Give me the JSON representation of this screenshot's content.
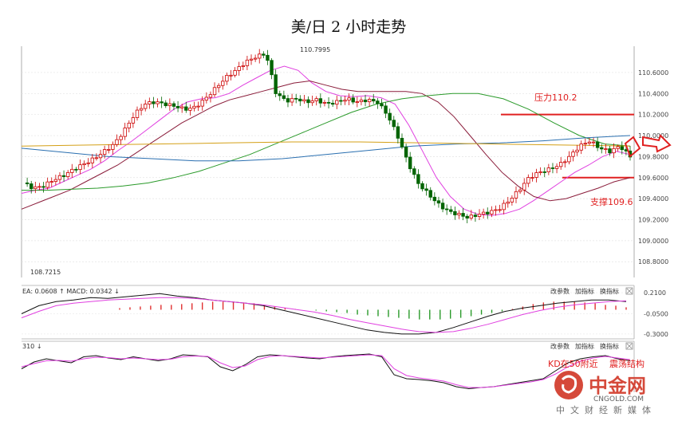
{
  "chart_data": [
    {
      "type": "candlestick",
      "title": "美/日 2 小时走势",
      "ylim": [
        108.65,
        110.85
      ],
      "y_ticks": [
        "110.6000",
        "110.4000",
        "110.2000",
        "110.0000",
        "109.8000",
        "109.6000",
        "109.4000",
        "109.2000",
        "109.0000",
        "108.8000"
      ],
      "y_tick_values": [
        110.6,
        110.4,
        110.2,
        110.0,
        109.8,
        109.6,
        109.4,
        109.2,
        109.0,
        108.8
      ],
      "high_label": "110.7995",
      "low_label": "108.7215",
      "close_path": [
        109.55,
        109.5,
        109.52,
        109.58,
        109.62,
        109.68,
        109.73,
        109.78,
        109.85,
        109.92,
        110.05,
        110.2,
        110.3,
        110.32,
        110.3,
        110.28,
        110.25,
        110.27,
        110.35,
        110.45,
        110.55,
        110.62,
        110.7,
        110.75,
        110.78,
        110.4,
        110.33,
        110.35,
        110.32,
        110.34,
        110.3,
        110.32,
        110.35,
        110.32,
        110.34,
        110.32,
        110.2,
        110.0,
        109.75,
        109.55,
        109.45,
        109.35,
        109.28,
        109.25,
        109.22,
        109.25,
        109.27,
        109.3,
        109.38,
        109.48,
        109.6,
        109.65,
        109.68,
        109.72,
        109.8,
        109.9,
        109.95,
        109.88,
        109.85,
        109.9,
        109.8
      ],
      "series": [
        {
          "name": "",
          "color": "#e040e0",
          "values": [
            109.45,
            109.48,
            109.5,
            109.56,
            109.62,
            109.68,
            109.76,
            109.86,
            109.95,
            110.05,
            110.15,
            110.25,
            110.32,
            110.35,
            110.36,
            110.4,
            110.48,
            110.55,
            110.62,
            110.66,
            110.62,
            110.5,
            110.42,
            110.38,
            110.37,
            110.38,
            110.36,
            110.3,
            110.1,
            109.85,
            109.6,
            109.42,
            109.3,
            109.25,
            109.24,
            109.26,
            109.3,
            109.38,
            109.47,
            109.56,
            109.65,
            109.72,
            109.8,
            109.85,
            109.82
          ]
        },
        {
          "name": "",
          "color": "#8a1c3a",
          "values": [
            109.3,
            109.36,
            109.42,
            109.48,
            109.56,
            109.64,
            109.72,
            109.82,
            109.92,
            110.02,
            110.12,
            110.2,
            110.28,
            110.34,
            110.38,
            110.42,
            110.46,
            110.5,
            110.52,
            110.48,
            110.44,
            110.42,
            110.42,
            110.42,
            110.42,
            110.4,
            110.32,
            110.18,
            110.0,
            109.82,
            109.65,
            109.52,
            109.42,
            109.38,
            109.4,
            109.45,
            109.5,
            109.56,
            109.6
          ]
        },
        {
          "name": "",
          "color": "#2a9a2a",
          "values": [
            109.48,
            109.48,
            109.49,
            109.5,
            109.52,
            109.55,
            109.6,
            109.66,
            109.74,
            109.82,
            109.92,
            110.02,
            110.12,
            110.22,
            110.3,
            110.35,
            110.38,
            110.4,
            110.4,
            110.35,
            110.25,
            110.12,
            110.0,
            109.92,
            109.9
          ]
        },
        {
          "name": "",
          "color": "#2a6fb0",
          "values": [
            109.88,
            109.84,
            109.8,
            109.78,
            109.76,
            109.76,
            109.78,
            109.82,
            109.86,
            109.9,
            109.92,
            109.93,
            109.95,
            109.98,
            110.0
          ]
        },
        {
          "name": "",
          "color": "#d4a017",
          "values": [
            109.9,
            109.91,
            109.92,
            109.93,
            109.94,
            109.94,
            109.93,
            109.92,
            109.91,
            109.9
          ]
        }
      ],
      "annotations": {
        "resistance_label": "压力110.2",
        "resistance_value": 110.2,
        "support_label": "支撑109.6",
        "support_value": 109.6
      }
    },
    {
      "type": "line",
      "header": "EA: 0.0608 ↑ MACD: 0.0342 ↓",
      "y_ticks": [
        "0.2100",
        "-0.0500",
        "-0.3000"
      ],
      "y_tick_values": [
        0.21,
        -0.05,
        -0.3
      ],
      "ylim": [
        -0.36,
        0.3
      ],
      "buttons": [
        "改参数",
        "加指标",
        "换指标"
      ],
      "histogram": [
        0.02,
        0.03,
        0.04,
        0.05,
        0.06,
        0.06,
        0.07,
        0.08,
        0.09,
        0.1,
        0.1,
        0.1,
        0.09,
        0.08,
        0.06,
        0.04,
        0.02,
        0.01,
        0.0,
        -0.01,
        -0.02,
        -0.03,
        -0.04,
        -0.06,
        -0.07,
        -0.08,
        -0.09,
        -0.1,
        -0.11,
        -0.12,
        -0.12,
        -0.12,
        -0.11,
        -0.1,
        -0.08,
        -0.06,
        -0.04,
        -0.02,
        0.01,
        0.04,
        0.07,
        0.09,
        0.1,
        0.1,
        0.1,
        0.09,
        0.08,
        0.06,
        0.05,
        0.03
      ],
      "series": [
        {
          "name": "",
          "color": "#111111",
          "values": [
            -0.05,
            0.05,
            0.1,
            0.12,
            0.15,
            0.14,
            0.16,
            0.18,
            0.2,
            0.17,
            0.15,
            0.12,
            0.1,
            0.08,
            0.05,
            0.0,
            -0.05,
            -0.1,
            -0.15,
            -0.2,
            -0.25,
            -0.28,
            -0.3,
            -0.3,
            -0.28,
            -0.22,
            -0.15,
            -0.08,
            -0.02,
            0.02,
            0.05,
            0.08,
            0.1,
            0.12,
            0.12,
            0.1
          ]
        },
        {
          "name": "",
          "color": "#e040e0",
          "values": [
            -0.1,
            -0.02,
            0.05,
            0.08,
            0.1,
            0.12,
            0.13,
            0.14,
            0.15,
            0.15,
            0.14,
            0.12,
            0.1,
            0.08,
            0.06,
            0.03,
            0.0,
            -0.03,
            -0.07,
            -0.12,
            -0.16,
            -0.2,
            -0.24,
            -0.27,
            -0.28,
            -0.27,
            -0.23,
            -0.18,
            -0.12,
            -0.06,
            -0.01,
            0.03,
            0.06,
            0.08,
            0.1,
            0.11
          ]
        }
      ]
    },
    {
      "type": "line",
      "header": "310 ↓",
      "buttons": [
        "改参数",
        "加指标",
        "换指标"
      ],
      "ylim": [
        0,
        100
      ],
      "annotation_partial": "KD在50附近",
      "annotation_partial_2": "震荡结构",
      "series": [
        {
          "name": "",
          "color": "#111111",
          "values": [
            55,
            72,
            80,
            75,
            70,
            85,
            88,
            82,
            78,
            85,
            80,
            75,
            80,
            90,
            88,
            85,
            60,
            50,
            65,
            85,
            90,
            88,
            85,
            82,
            80,
            85,
            88,
            90,
            92,
            85,
            40,
            30,
            28,
            25,
            20,
            10,
            5,
            8,
            10,
            15,
            20,
            25,
            30,
            50,
            70,
            80,
            85,
            88,
            80,
            75
          ]
        },
        {
          "name": "",
          "color": "#e040e0",
          "values": [
            60,
            68,
            75,
            76,
            74,
            80,
            84,
            83,
            80,
            82,
            80,
            78,
            79,
            85,
            87,
            86,
            70,
            58,
            62,
            78,
            86,
            88,
            86,
            84,
            82,
            84,
            86,
            88,
            90,
            88,
            55,
            38,
            32,
            28,
            24,
            15,
            8,
            8,
            10,
            14,
            18,
            22,
            28,
            42,
            60,
            74,
            82,
            86,
            82,
            78
          ]
        }
      ]
    }
  ],
  "watermark": {
    "brand": "中金网",
    "domain": "CNGOLD.COM",
    "tagline": "中文财经新媒体",
    "color": "#d23a2a"
  }
}
